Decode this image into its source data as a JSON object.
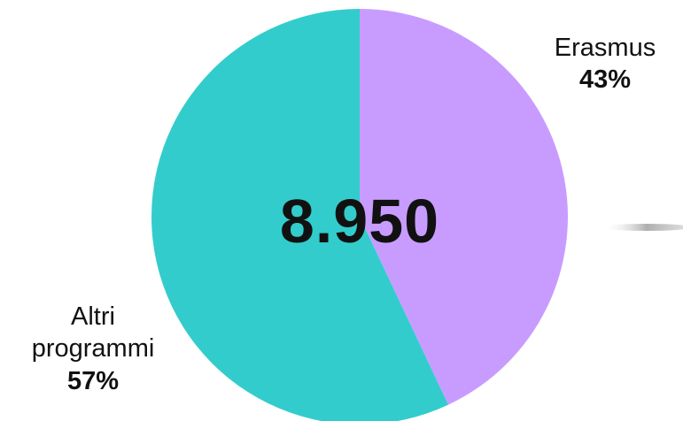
{
  "chart_data": {
    "type": "pie",
    "center_total": "8.950",
    "slices": [
      {
        "name": "Erasmus",
        "value": 43,
        "label": "43%",
        "color": "#c89cff"
      },
      {
        "name": "Altri programmi",
        "value": 57,
        "label": "57%",
        "color": "#33cccc"
      }
    ],
    "start": "12 o'clock",
    "direction": "clockwise"
  },
  "labels": {
    "erasmus_name": "Erasmus",
    "erasmus_pct": "43%",
    "altri_name_line1": "Altri",
    "altri_name_line2": "programmi",
    "altri_pct": "57%"
  }
}
